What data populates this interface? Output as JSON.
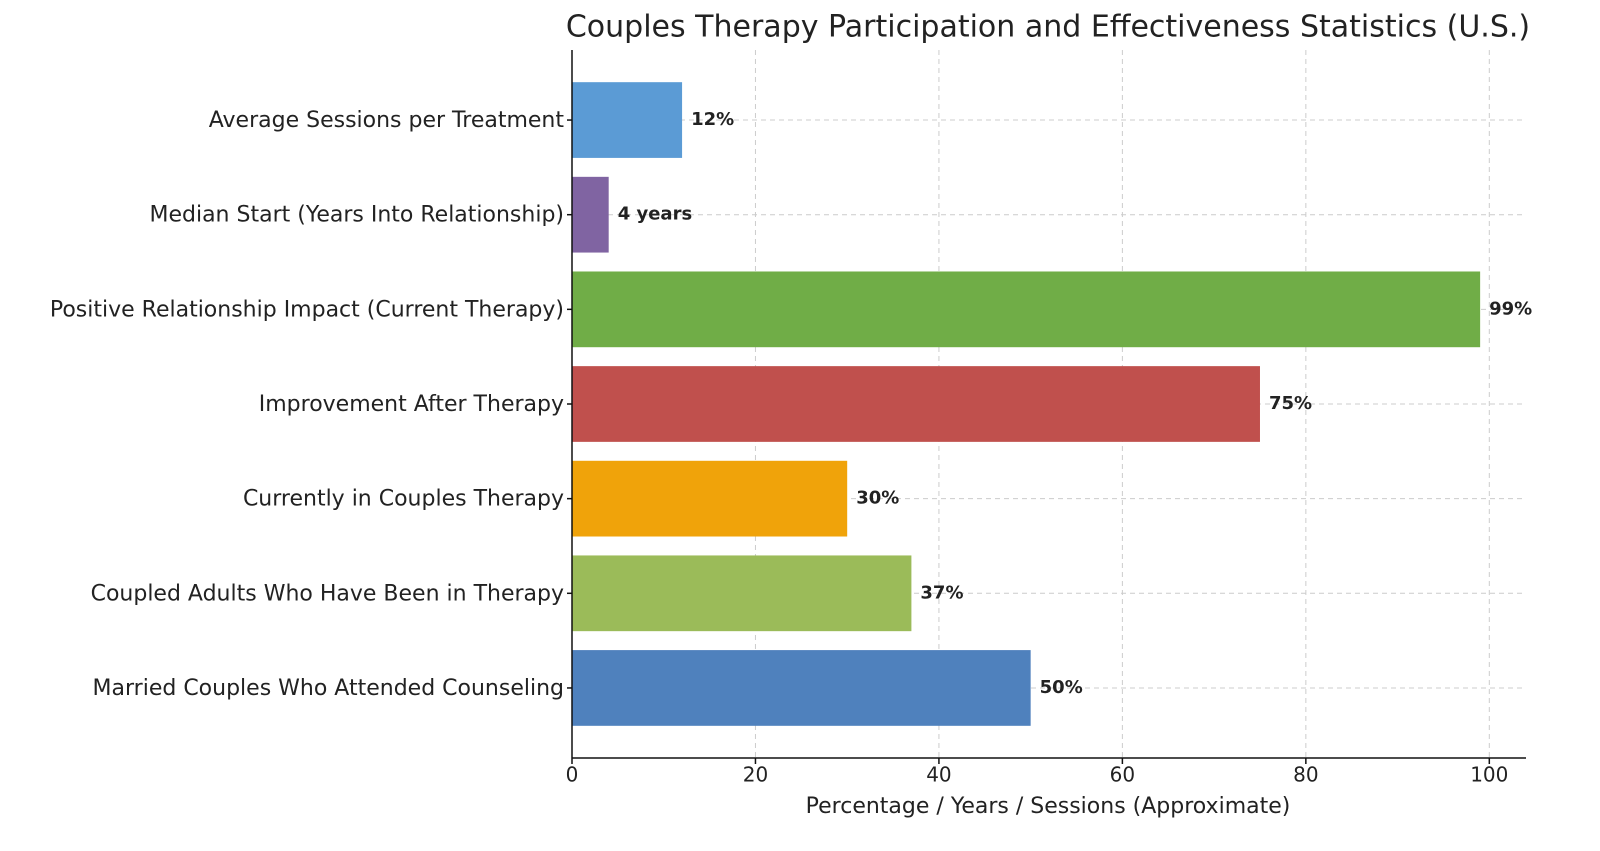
{
  "chart_data": {
    "type": "barh",
    "title": "Couples Therapy Participation and Effectiveness Statistics (U.S.)",
    "x_label": "Percentage / Years / Sessions (Approximate)",
    "categories": [
      "Married Couples Who Attended Counseling",
      "Coupled Adults Who Have Been in Therapy",
      "Currently in Couples Therapy",
      "Improvement After Therapy",
      "Positive Relationship Impact (Current Therapy)",
      "Median Start (Years Into Relationship)",
      "Average Sessions per Treatment"
    ],
    "values": [
      50,
      37,
      30,
      75,
      99,
      4,
      12
    ],
    "value_labels": [
      "50%",
      "37%",
      "30%",
      "75%",
      "99%",
      "4 years",
      "12%"
    ],
    "colors": [
      "#4f81bd",
      "#9bbb59",
      "#f0a30a",
      "#c0504d",
      "#70ad47",
      "#8064a2",
      "#5b9bd5"
    ],
    "xlim": [
      0,
      104
    ],
    "xticks": [
      0,
      20,
      40,
      60,
      80,
      100
    ],
    "grid": true
  }
}
